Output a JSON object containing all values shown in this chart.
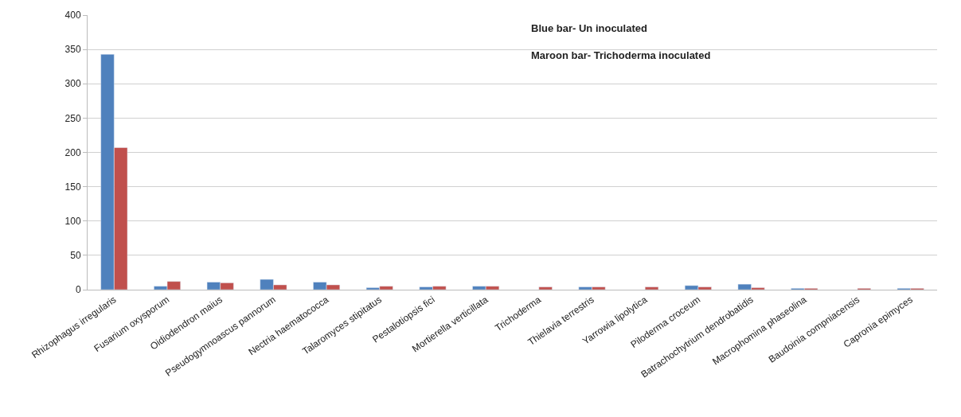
{
  "chart_data": {
    "type": "bar",
    "categories": [
      "Rhizophagus irregularis",
      "Fusarium oxysporum",
      "Oidiodendron maius",
      "Pseudogymnoascus pannorum",
      "Nectria haematococca",
      "Talaromyces stipitatus",
      "Pestalotiopsis fici",
      "Mortierella verticillata",
      "Trichoderma",
      "Thielavia terrestris",
      "Yarrowia lipolytica",
      "Piloderma croceum",
      "Batrachochytrium dendrobatidis",
      "Macrophomina phaseolina",
      "Baudoinia compniacensis",
      "Capronia epimyces"
    ],
    "series": [
      {
        "color": "#4f81bd",
        "values": [
          343,
          5,
          11,
          15,
          11,
          3,
          4,
          5,
          null,
          4,
          null,
          6,
          8,
          2,
          null,
          2
        ]
      },
      {
        "color": "#c0504d",
        "values": [
          207,
          12,
          10,
          7,
          7,
          5,
          5,
          5,
          4,
          4,
          4,
          4,
          3,
          2,
          2,
          2
        ]
      }
    ],
    "annotations": [
      "Blue bar- Un inoculated",
      "Maroon bar- Trichoderma inoculated"
    ],
    "ylim": [
      0,
      400
    ],
    "yticks": [
      0,
      50,
      100,
      150,
      200,
      250,
      300,
      350,
      400
    ],
    "grid": "y",
    "legend": false
  }
}
